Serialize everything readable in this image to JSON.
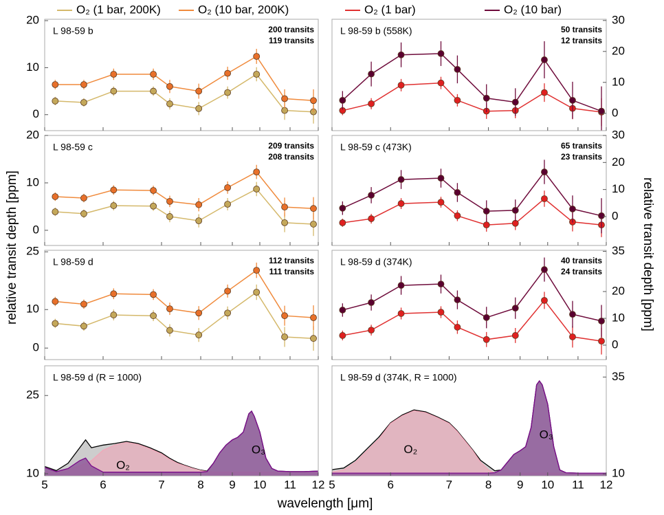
{
  "legend": [
    {
      "label": "O₂ (1 bar, 200K)",
      "color": "#d4b86a"
    },
    {
      "label": "O₂ (10 bar, 200K)",
      "color": "#f08a3c"
    },
    {
      "label": "O₂ (1 bar)",
      "color": "#e03030"
    },
    {
      "label": "O₂ (10 bar)",
      "color": "#6e0b3b"
    }
  ],
  "ylabel": "relative transit depth [ppm]",
  "y2label": "relative transit depth [ppm]",
  "xlabel": "wavelength [μm]",
  "xlim": [
    5,
    12
  ],
  "xticks": [
    5,
    6,
    7,
    8,
    9,
    10,
    11,
    12
  ],
  "chart_data": [
    {
      "type": "errorbar",
      "title": "L 98-59 b",
      "ylim": [
        -3.4,
        20.3
      ],
      "yticks": [
        0,
        10,
        20
      ],
      "x": [
        5.18,
        5.67,
        6.18,
        6.86,
        7.21,
        7.95,
        8.85,
        9.88,
        10.82,
        11.83
      ],
      "annotations": [
        {
          "text": "200 transits",
          "color": "#d4b86a"
        },
        {
          "text": "119 transits",
          "color": "#f08a3c"
        }
      ],
      "series": [
        {
          "color": "#d4b86a",
          "marker": "#c4a85a",
          "values": [
            2.9,
            2.6,
            5.0,
            5.0,
            2.3,
            1.3,
            4.7,
            8.6,
            0.9,
            0.6
          ],
          "errors": [
            0.9,
            0.9,
            1.0,
            1.0,
            1.2,
            1.4,
            1.3,
            1.5,
            2.0,
            2.5
          ]
        },
        {
          "color": "#f08a3c",
          "marker": "#e8702a",
          "values": [
            6.4,
            6.4,
            8.6,
            8.6,
            6.0,
            5.0,
            8.8,
            12.4,
            3.4,
            3.0
          ],
          "errors": [
            1.0,
            1.0,
            1.2,
            1.2,
            1.4,
            1.6,
            1.4,
            1.6,
            2.0,
            2.4
          ]
        }
      ]
    },
    {
      "type": "errorbar",
      "title": "L 98-59 b (558K)",
      "axis_side": "right",
      "ylim": [
        -5.6,
        30.4
      ],
      "yticks": [
        0,
        10,
        20,
        30
      ],
      "x": [
        5.18,
        5.67,
        6.18,
        6.86,
        7.21,
        7.95,
        8.85,
        9.88,
        10.82,
        11.83
      ],
      "annotations": [
        {
          "text": "50 transits",
          "color": "#e03030"
        },
        {
          "text": "12 transits",
          "color": "#6e0b3b"
        }
      ],
      "series": [
        {
          "color": "#e03030",
          "marker": "#e02020",
          "values": [
            0.9,
            3.1,
            9.1,
            9.8,
            4.2,
            0.7,
            0.9,
            6.7,
            1.6,
            0.4
          ],
          "errors": [
            1.5,
            1.8,
            2.0,
            2.0,
            2.0,
            2.5,
            2.5,
            3.0,
            3.5,
            4.5
          ]
        },
        {
          "color": "#6e0b3b",
          "marker": "#5a0030",
          "values": [
            4.2,
            12.7,
            18.9,
            19.3,
            14.2,
            4.9,
            3.6,
            17.3,
            4.2,
            0.7
          ],
          "errors": [
            3.0,
            4.0,
            4.0,
            4.0,
            4.5,
            4.5,
            4.5,
            6.0,
            6.0,
            8.0
          ]
        }
      ]
    },
    {
      "type": "errorbar",
      "title": "L 98-59 c",
      "ylim": [
        -3.2,
        20
      ],
      "yticks": [
        0,
        10,
        20
      ],
      "x": [
        5.18,
        5.67,
        6.18,
        6.86,
        7.21,
        7.95,
        8.85,
        9.88,
        10.82,
        11.83
      ],
      "annotations": [
        {
          "text": "209 transits",
          "color": "#d4b86a"
        },
        {
          "text": "208 transits",
          "color": "#f08a3c"
        }
      ],
      "series": [
        {
          "color": "#d4b86a",
          "marker": "#c4a85a",
          "values": [
            3.9,
            3.5,
            5.2,
            5.1,
            2.9,
            2.0,
            5.5,
            8.7,
            1.6,
            1.3
          ],
          "errors": [
            0.9,
            0.9,
            1.0,
            1.0,
            1.2,
            1.4,
            1.3,
            1.5,
            2.0,
            2.5
          ]
        },
        {
          "color": "#f08a3c",
          "marker": "#e8702a",
          "values": [
            7.1,
            6.8,
            8.5,
            8.4,
            6.1,
            5.4,
            9.0,
            12.3,
            4.9,
            4.6
          ],
          "errors": [
            0.9,
            0.9,
            1.0,
            1.0,
            1.2,
            1.4,
            1.3,
            1.5,
            2.0,
            2.4
          ]
        }
      ]
    },
    {
      "type": "errorbar",
      "title": "L 98-59 c (473K)",
      "axis_side": "right",
      "ylim": [
        -10.7,
        30
      ],
      "yticks": [
        0,
        10,
        20,
        30
      ],
      "x": [
        5.18,
        5.67,
        6.18,
        6.86,
        7.21,
        7.95,
        8.85,
        9.88,
        10.82,
        11.83
      ],
      "annotations": [
        {
          "text": "65 transits",
          "color": "#e03030"
        },
        {
          "text": "23 transits",
          "color": "#6e0b3b"
        }
      ],
      "series": [
        {
          "color": "#e03030",
          "marker": "#e02020",
          "values": [
            -2.3,
            -0.8,
            4.8,
            5.3,
            0.3,
            -3.1,
            -2.5,
            6.6,
            -2.0,
            -3.1
          ],
          "errors": [
            1.5,
            1.8,
            2.0,
            2.0,
            2.0,
            2.5,
            2.5,
            3.0,
            3.5,
            4.5
          ]
        },
        {
          "color": "#6e0b3b",
          "marker": "#5a0030",
          "values": [
            3.1,
            7.9,
            13.7,
            14.2,
            8.9,
            2.0,
            2.3,
            16.5,
            2.8,
            0.3
          ],
          "errors": [
            2.5,
            3.0,
            3.5,
            3.5,
            3.5,
            4.0,
            4.0,
            4.5,
            5.0,
            6.5
          ]
        }
      ]
    },
    {
      "type": "errorbar",
      "title": "L 98-59 d",
      "ylim": [
        -3.0,
        25.4
      ],
      "yticks": [
        0,
        10,
        25
      ],
      "x": [
        5.18,
        5.67,
        6.18,
        6.86,
        7.21,
        7.95,
        8.85,
        9.88,
        10.82,
        11.83
      ],
      "annotations": [
        {
          "text": "112 transits",
          "color": "#d4b86a"
        },
        {
          "text": "111 transits",
          "color": "#f08a3c"
        }
      ],
      "series": [
        {
          "color": "#d4b86a",
          "marker": "#c4a85a",
          "values": [
            6.4,
            5.7,
            8.6,
            8.4,
            4.6,
            3.4,
            9.1,
            14.5,
            2.9,
            2.5
          ],
          "errors": [
            1.2,
            1.2,
            1.4,
            1.4,
            1.6,
            1.8,
            1.7,
            2.0,
            2.6,
            3.2
          ]
        },
        {
          "color": "#f08a3c",
          "marker": "#e8702a",
          "values": [
            12.1,
            11.4,
            14.1,
            13.9,
            10.2,
            9.1,
            14.8,
            20.2,
            8.4,
            7.9
          ],
          "errors": [
            1.2,
            1.2,
            1.4,
            1.4,
            1.6,
            1.8,
            1.7,
            2.0,
            2.6,
            3.2
          ]
        }
      ]
    },
    {
      "type": "errorbar",
      "title": "L 98-59 d (374K)",
      "axis_side": "right",
      "ylim": [
        -5.4,
        35.4
      ],
      "yticks": [
        0,
        10,
        20,
        35
      ],
      "x": [
        5.18,
        5.67,
        6.18,
        6.86,
        7.21,
        7.95,
        8.85,
        9.88,
        10.82,
        11.83
      ],
      "annotations": [
        {
          "text": "40 transits",
          "color": "#e03030"
        },
        {
          "text": "24 transits",
          "color": "#6e0b3b"
        }
      ],
      "series": [
        {
          "color": "#e03030",
          "marker": "#e02020",
          "values": [
            3.6,
            5.6,
            11.8,
            12.3,
            6.7,
            2.1,
            3.6,
            16.7,
            3.1,
            1.5
          ],
          "errors": [
            1.8,
            2.0,
            2.2,
            2.2,
            2.5,
            2.8,
            2.8,
            3.2,
            4.0,
            5.0
          ]
        },
        {
          "color": "#6e0b3b",
          "marker": "#5a0030",
          "values": [
            13.1,
            15.9,
            22.3,
            22.8,
            16.9,
            10.3,
            13.8,
            28.2,
            11.5,
            9.0
          ],
          "errors": [
            2.5,
            3.0,
            3.5,
            3.5,
            3.5,
            4.0,
            4.0,
            4.5,
            5.0,
            6.0
          ]
        }
      ]
    },
    {
      "type": "area",
      "title": "L 98-59 d (R = 1000)",
      "ylim": [
        9.6,
        30.7
      ],
      "yticks": [
        10,
        25
      ],
      "x": [
        5.0,
        5.2,
        5.4,
        5.6,
        5.7,
        5.8,
        6.0,
        6.2,
        6.4,
        6.6,
        6.8,
        7.0,
        7.2,
        7.4,
        7.6,
        7.8,
        8.0,
        8.2,
        8.4,
        8.6,
        8.8,
        9.0,
        9.2,
        9.4,
        9.6,
        9.7,
        9.8,
        10.0,
        10.2,
        10.4,
        10.6,
        11.0,
        11.5,
        12.0
      ],
      "series": [
        {
          "color": "#000000",
          "fill": "#c8c8c8",
          "values": [
            11.4,
            10.6,
            12,
            15,
            16.5,
            15,
            15.5,
            15.8,
            16.2,
            15.8,
            15,
            14,
            13,
            12.2,
            11.6,
            11.1,
            10.7,
            10.5,
            12,
            14,
            15.5,
            16.5,
            17,
            18,
            21.5,
            22,
            21,
            18,
            13,
            11,
            10.5,
            10.4,
            10.4,
            10.5
          ]
        },
        {
          "label": "O₂",
          "color": "#f2a6b8",
          "fill": "#e3b3bf",
          "text_color": "#c97a90",
          "values": [
            10.3,
            10.4,
            10.8,
            11.5,
            12,
            12.5,
            14.5,
            15.5,
            16,
            15.6,
            14.8,
            13.8,
            12.8,
            12,
            11.5,
            11,
            10.6,
            10.4,
            10.3,
            10.3,
            10.3,
            10.3,
            10.3,
            10.3,
            10.3,
            10.3,
            10.3,
            10.3,
            10.3,
            10.3,
            10.3,
            10.3,
            10.3,
            10.3
          ]
        },
        {
          "label": "O₃",
          "color": "#7a0a8a",
          "fill": "#8e5a9a",
          "text_color": "#5a0a6a",
          "values": [
            11.2,
            10.4,
            11,
            12.5,
            13,
            11.5,
            10.3,
            10.3,
            10.3,
            10.3,
            10.3,
            10.3,
            10.3,
            10.3,
            10.3,
            10.3,
            10.3,
            10.4,
            12,
            14,
            15.5,
            16.5,
            17,
            18,
            21.5,
            22,
            21,
            18,
            13,
            11,
            10.5,
            10.4,
            10.4,
            10.5
          ]
        }
      ]
    },
    {
      "type": "area",
      "title": "L 98-59 d (374K, R = 1000)",
      "axis_side": "right",
      "ylim": [
        9.5,
        37.9
      ],
      "yticks": [
        10,
        35
      ],
      "x": [
        5.0,
        5.2,
        5.4,
        5.6,
        5.7,
        5.8,
        6.0,
        6.2,
        6.4,
        6.6,
        6.8,
        7.0,
        7.2,
        7.4,
        7.6,
        7.8,
        8.0,
        8.2,
        8.4,
        8.6,
        8.8,
        9.0,
        9.2,
        9.4,
        9.6,
        9.7,
        9.8,
        10.0,
        10.2,
        10.4,
        10.6,
        11.0,
        11.5,
        12.0
      ],
      "series": [
        {
          "color": "#000000",
          "fill": "#c8c8c8",
          "values": [
            11.1,
            11.5,
            13.5,
            16.5,
            18,
            19.5,
            23.2,
            25.2,
            26.5,
            26,
            24.7,
            23.2,
            21.2,
            18.7,
            16.2,
            13.5,
            12,
            10.8,
            11,
            13,
            15,
            16,
            17,
            22,
            33,
            34,
            33,
            28,
            17,
            11,
            10.3,
            10.2,
            10.2,
            10.2
          ]
        },
        {
          "label": "O₂",
          "color": "#f2a6b8",
          "fill": "#e3b3bf",
          "text_color": "#c97a90",
          "values": [
            10.5,
            11,
            13,
            16,
            17.5,
            19,
            23,
            25,
            26.3,
            25.8,
            24.5,
            23,
            21,
            18.5,
            16,
            13,
            11,
            10.2,
            10.2,
            10.2,
            10.2,
            10.2,
            10.2,
            10.2,
            10.2,
            10.2,
            10.2,
            10.2,
            10.2,
            10.2,
            10.2,
            10.2,
            10.2,
            10.2
          ]
        },
        {
          "label": "O₃",
          "color": "#7a0a8a",
          "fill": "#8e5a9a",
          "text_color": "#5a0a6a",
          "values": [
            10.2,
            10.2,
            10.2,
            10.2,
            10.2,
            10.2,
            10.2,
            10.2,
            10.2,
            10.2,
            10.2,
            10.2,
            10.2,
            10.2,
            10.2,
            10.2,
            10.2,
            10.3,
            11,
            13,
            15,
            16,
            17,
            22,
            33,
            34,
            33,
            28,
            17,
            11,
            10.3,
            10.2,
            10.2,
            10.2
          ]
        }
      ]
    }
  ]
}
